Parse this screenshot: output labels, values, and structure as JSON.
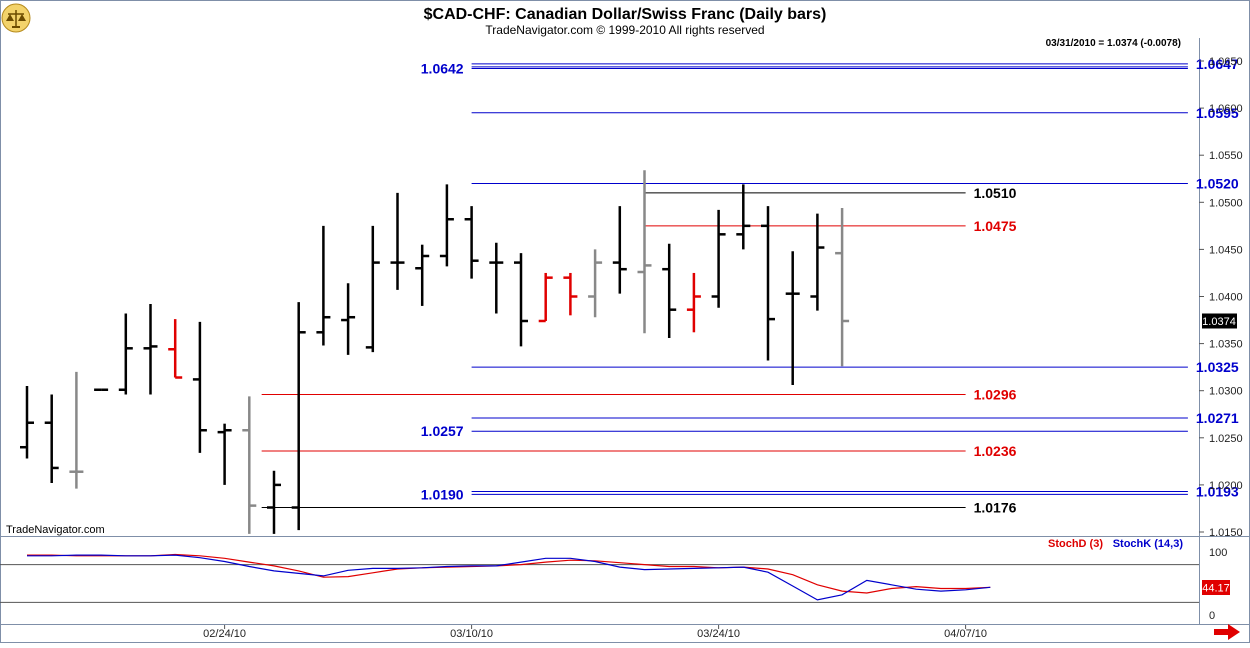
{
  "header": {
    "title": "$CAD-CHF:  Canadian Dollar/Swiss Franc  (Daily bars)",
    "subtitle": "TradeNavigator.com © 1999-2010 All rights reserved",
    "readout": "03/31/2010 = 1.0374 (-0.0078)",
    "brand": "TradeNavigator.com",
    "last_price_tag": "1.0374"
  },
  "colors": {
    "blue": "#0000cc",
    "red": "#e00000",
    "black": "#000000",
    "gray": "#888888",
    "stoch_d": "#dd0000",
    "stoch_k": "#0000cc",
    "frame": "#7f8fa8"
  },
  "chart_data": [
    {
      "type": "ohlc",
      "title": "$CAD-CHF:  Canadian Dollar/Swiss Franc  (Daily bars)",
      "ylim": [
        1.0148,
        1.0665
      ],
      "y_ticks": [
        "1.0650",
        "1.0600",
        "1.0550",
        "1.0500",
        "1.0450",
        "1.0400",
        "1.0350",
        "1.0300",
        "1.0250",
        "1.0200",
        "1.0150"
      ],
      "x_ticks": [
        "02/24/10",
        "03/10/10",
        "03/24/10",
        "04/07/10"
      ],
      "bars": [
        {
          "o": 1.024,
          "h": 1.0305,
          "l": 1.0228,
          "c": 1.0266,
          "color": "black"
        },
        {
          "o": 1.0266,
          "h": 1.0296,
          "l": 1.0202,
          "c": 1.0218,
          "color": "black"
        },
        {
          "o": 1.0214,
          "h": 1.032,
          "l": 1.0196,
          "c": 1.0214,
          "color": "gray"
        },
        {
          "o": 1.0301,
          "h": 1.0301,
          "l": 1.0301,
          "c": 1.0301,
          "color": "black"
        },
        {
          "o": 1.0301,
          "h": 1.0382,
          "l": 1.0296,
          "c": 1.0345,
          "color": "black"
        },
        {
          "o": 1.0345,
          "h": 1.0392,
          "l": 1.0296,
          "c": 1.0347,
          "color": "black"
        },
        {
          "o": 1.0344,
          "h": 1.0376,
          "l": 1.0314,
          "c": 1.0314,
          "color": "red"
        },
        {
          "o": 1.0312,
          "h": 1.0373,
          "l": 1.0234,
          "c": 1.0258,
          "color": "black"
        },
        {
          "o": 1.0256,
          "h": 1.0265,
          "l": 1.02,
          "c": 1.0258,
          "color": "black"
        },
        {
          "o": 1.0258,
          "h": 1.0294,
          "l": 1.0148,
          "c": 1.0178,
          "color": "gray"
        },
        {
          "o": 1.0176,
          "h": 1.0215,
          "l": 1.0148,
          "c": 1.02,
          "color": "black"
        },
        {
          "o": 1.0176,
          "h": 1.0394,
          "l": 1.0152,
          "c": 1.0362,
          "color": "black"
        },
        {
          "o": 1.0362,
          "h": 1.0475,
          "l": 1.0348,
          "c": 1.0378,
          "color": "black"
        },
        {
          "o": 1.0375,
          "h": 1.0414,
          "l": 1.0338,
          "c": 1.0378,
          "color": "black"
        },
        {
          "o": 1.0346,
          "h": 1.0475,
          "l": 1.0341,
          "c": 1.0436,
          "color": "black"
        },
        {
          "o": 1.0436,
          "h": 1.051,
          "l": 1.0407,
          "c": 1.0436,
          "color": "black"
        },
        {
          "o": 1.043,
          "h": 1.0455,
          "l": 1.039,
          "c": 1.0443,
          "color": "black"
        },
        {
          "o": 1.0443,
          "h": 1.0519,
          "l": 1.0432,
          "c": 1.0482,
          "color": "black"
        },
        {
          "o": 1.0482,
          "h": 1.0496,
          "l": 1.0419,
          "c": 1.0438,
          "color": "black"
        },
        {
          "o": 1.0436,
          "h": 1.0457,
          "l": 1.0382,
          "c": 1.0436,
          "color": "black"
        },
        {
          "o": 1.0436,
          "h": 1.0446,
          "l": 1.0347,
          "c": 1.0374,
          "color": "black"
        },
        {
          "o": 1.0374,
          "h": 1.0425,
          "l": 1.0374,
          "c": 1.042,
          "color": "red"
        },
        {
          "o": 1.042,
          "h": 1.0425,
          "l": 1.038,
          "c": 1.04,
          "color": "red"
        },
        {
          "o": 1.04,
          "h": 1.045,
          "l": 1.0378,
          "c": 1.0436,
          "color": "gray"
        },
        {
          "o": 1.0436,
          "h": 1.0496,
          "l": 1.0403,
          "c": 1.0429,
          "color": "black"
        },
        {
          "o": 1.0426,
          "h": 1.0534,
          "l": 1.0361,
          "c": 1.0433,
          "color": "gray"
        },
        {
          "o": 1.0429,
          "h": 1.0456,
          "l": 1.0356,
          "c": 1.0386,
          "color": "black"
        },
        {
          "o": 1.0386,
          "h": 1.0425,
          "l": 1.0362,
          "c": 1.04,
          "color": "red"
        },
        {
          "o": 1.04,
          "h": 1.0492,
          "l": 1.0388,
          "c": 1.0466,
          "color": "black"
        },
        {
          "o": 1.0466,
          "h": 1.0519,
          "l": 1.045,
          "c": 1.0475,
          "color": "black"
        },
        {
          "o": 1.0475,
          "h": 1.0496,
          "l": 1.0332,
          "c": 1.0376,
          "color": "black"
        },
        {
          "o": 1.0403,
          "h": 1.0448,
          "l": 1.0306,
          "c": 1.0403,
          "color": "black"
        },
        {
          "o": 1.04,
          "h": 1.0488,
          "l": 1.0385,
          "c": 1.0452,
          "color": "black"
        },
        {
          "o": 1.0446,
          "h": 1.0494,
          "l": 1.0326,
          "c": 1.0374,
          "color": "gray"
        }
      ],
      "levels": [
        {
          "value": 1.0647,
          "label": "1.0647",
          "color": "blue",
          "from_bar": 18,
          "to_bar": 47,
          "side": "right",
          "double": true
        },
        {
          "value": 1.0642,
          "label": "1.0642",
          "color": "blue",
          "from_bar": 18,
          "to_bar": 47,
          "side": "left",
          "double": false
        },
        {
          "value": 1.0595,
          "label": "1.0595",
          "color": "blue",
          "from_bar": 18,
          "to_bar": 47,
          "side": "right",
          "double": false
        },
        {
          "value": 1.052,
          "label": "1.0520",
          "color": "blue",
          "from_bar": 18,
          "to_bar": 47,
          "side": "right",
          "double": false
        },
        {
          "value": 1.051,
          "label": "1.0510",
          "color": "black",
          "from_bar": 25,
          "to_bar": 38,
          "side": "right",
          "double": false
        },
        {
          "value": 1.0475,
          "label": "1.0475",
          "color": "red",
          "from_bar": 25,
          "to_bar": 38,
          "side": "right",
          "double": false
        },
        {
          "value": 1.0325,
          "label": "1.0325",
          "color": "blue",
          "from_bar": 18,
          "to_bar": 47,
          "side": "right",
          "double": false
        },
        {
          "value": 1.0296,
          "label": "1.0296",
          "color": "red",
          "from_bar": 9.5,
          "to_bar": 38,
          "side": "right",
          "double": false
        },
        {
          "value": 1.0271,
          "label": "1.0271",
          "color": "blue",
          "from_bar": 18,
          "to_bar": 47,
          "side": "right",
          "double": false
        },
        {
          "value": 1.0257,
          "label": "1.0257",
          "color": "blue",
          "from_bar": 18,
          "to_bar": 47,
          "side": "left",
          "double": false
        },
        {
          "value": 1.0236,
          "label": "1.0236",
          "color": "red",
          "from_bar": 9.5,
          "to_bar": 38,
          "side": "right",
          "double": false
        },
        {
          "value": 1.0193,
          "label": "1.0193",
          "color": "blue",
          "from_bar": 18,
          "to_bar": 47,
          "side": "right",
          "double": false
        },
        {
          "value": 1.019,
          "label": "1.0190",
          "color": "blue",
          "from_bar": 18,
          "to_bar": 47,
          "side": "left",
          "double": false
        },
        {
          "value": 1.0176,
          "label": "1.0176",
          "color": "black",
          "from_bar": 9.5,
          "to_bar": 38,
          "side": "right",
          "double": false
        }
      ]
    },
    {
      "type": "line",
      "title": "",
      "ylim": [
        0,
        100
      ],
      "y_ticks": [
        "100",
        "0"
      ],
      "current_value": "44.17",
      "series": [
        {
          "name": "StochD (3)",
          "color": "red",
          "values": [
            95,
            95,
            94,
            94,
            94,
            94,
            96,
            94,
            90,
            84,
            78,
            70,
            60,
            61,
            67,
            73,
            75,
            76,
            77,
            78,
            80,
            84,
            87,
            86,
            83,
            80,
            77,
            77,
            75,
            76,
            73,
            64,
            48,
            38,
            35,
            42,
            45,
            42,
            42,
            44
          ]
        },
        {
          "name": "StochK (14,3)",
          "color": "blue",
          "values": [
            94,
            94,
            95,
            95,
            94,
            94,
            95,
            91,
            85,
            77,
            70,
            66,
            62,
            71,
            74,
            74,
            75,
            77,
            78,
            78,
            84,
            90,
            90,
            85,
            76,
            72,
            73,
            74,
            75,
            76,
            68,
            46,
            24,
            32,
            55,
            48,
            41,
            38,
            40,
            44
          ]
        }
      ],
      "guide_lines": [
        80,
        20
      ]
    }
  ]
}
